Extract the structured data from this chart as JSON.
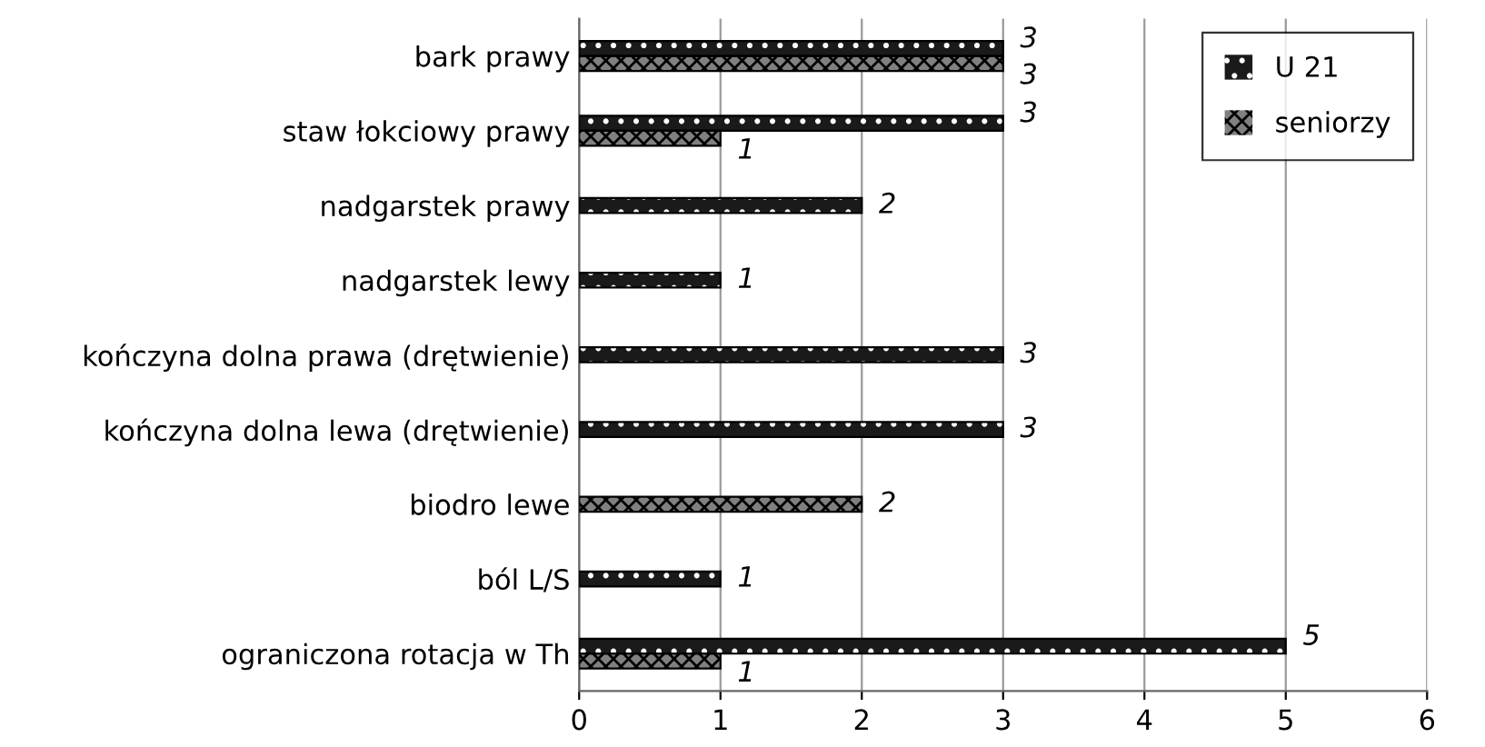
{
  "chart_data": {
    "type": "bar",
    "orientation": "horizontal",
    "categories": [
      "bark prawy",
      "staw łokciowy prawy",
      "nadgarstek prawy",
      "nadgarstek lewy",
      "kończyna dolna prawa (drętwienie)",
      "kończyna dolna lewa (drętwienie)",
      "biodro lewe",
      "ból L/S",
      "ograniczona rotacja w Th"
    ],
    "series": [
      {
        "name": "U 21",
        "color": "#1a1a1a",
        "values": [
          3,
          3,
          2,
          1,
          3,
          3,
          null,
          1,
          5
        ]
      },
      {
        "name": "seniorzy",
        "color": "#808080",
        "values": [
          3,
          1,
          null,
          null,
          null,
          null,
          2,
          null,
          1
        ]
      }
    ],
    "xlim": [
      0,
      6
    ],
    "xticks": [
      0,
      1,
      2,
      3,
      4,
      5,
      6
    ],
    "grid": "x",
    "legend": "top right",
    "data_labels": true
  }
}
